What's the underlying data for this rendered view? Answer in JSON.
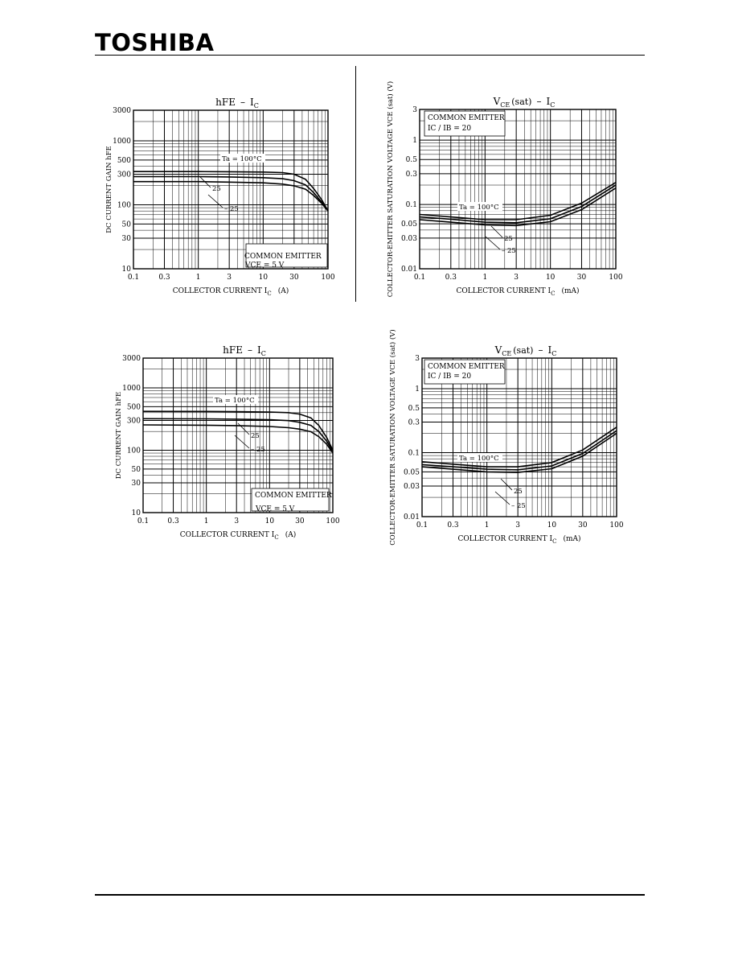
{
  "header": {
    "brand": "TOSHIBA"
  },
  "chart_data": [
    {
      "type": "line",
      "title_main": "hFE",
      "title_sep": "–",
      "title_rhs": "I",
      "title_rhs_sub": "C",
      "ylabel": "DC CURRENT GAIN   hFE",
      "xlabel_main": "COLLECTOR CURRENT   I",
      "xlabel_sub": "C",
      "xlabel_unit": "(A)",
      "x_scale": "log",
      "y_scale": "log",
      "xlim": [
        0.1,
        100
      ],
      "ylim": [
        10,
        3000
      ],
      "x_ticks": [
        "0.1",
        "0.3",
        "1",
        "3",
        "10",
        "30",
        "100"
      ],
      "y_ticks": [
        "3000",
        "1000",
        "500",
        "300",
        "100",
        "50",
        "30",
        "10"
      ],
      "annotation_lines": [
        "COMMON EMITTER",
        "VCE = 5 V"
      ],
      "curve_labels": [
        "Ta = 100°C",
        "25",
        "– 25"
      ],
      "series": [
        {
          "name": "Ta = 100°C",
          "x": [
            0.1,
            1,
            3,
            10,
            20,
            30,
            45,
            60,
            80,
            100
          ],
          "y": [
            330,
            330,
            328,
            325,
            318,
            300,
            250,
            180,
            120,
            80
          ]
        },
        {
          "name": "25",
          "x": [
            0.1,
            1,
            3,
            10,
            20,
            30,
            45,
            60,
            80,
            100
          ],
          "y": [
            275,
            275,
            272,
            265,
            255,
            238,
            205,
            155,
            110,
            80
          ]
        },
        {
          "name": "– 25",
          "x": [
            0.1,
            1,
            3,
            10,
            20,
            30,
            45,
            60,
            80,
            100
          ],
          "y": [
            230,
            230,
            226,
            220,
            210,
            198,
            175,
            140,
            105,
            80
          ]
        }
      ]
    },
    {
      "type": "line",
      "title_main": "V",
      "title_main_sub": "CE",
      "title_paren": "(sat)",
      "title_sep": "–",
      "title_rhs": "I",
      "title_rhs_sub": "C",
      "ylabel": "COLLECTOR-EMITTER SATURATION VOLTAGE   VCE (sat)  (V)",
      "xlabel_main": "COLLECTOR CURRENT   I",
      "xlabel_sub": "C",
      "xlabel_unit": "(mA)",
      "x_scale": "log",
      "y_scale": "log",
      "xlim": [
        0.1,
        100
      ],
      "ylim": [
        0.01,
        3
      ],
      "x_ticks": [
        "0.1",
        "0.3",
        "1",
        "3",
        "10",
        "30",
        "100"
      ],
      "y_ticks": [
        "3",
        "1",
        "0.5",
        "0.3",
        "0.1",
        "0.05",
        "0.03",
        "0.01"
      ],
      "annotation_lines": [
        "COMMON EMITTER",
        "IC / IB = 20"
      ],
      "curve_labels": [
        "Ta = 100°C",
        "25",
        "– 25"
      ],
      "series": [
        {
          "name": "Ta = 100°C",
          "x": [
            0.1,
            0.3,
            1,
            3,
            10,
            30,
            100
          ],
          "y": [
            0.07,
            0.064,
            0.058,
            0.058,
            0.068,
            0.105,
            0.22
          ]
        },
        {
          "name": "25",
          "x": [
            0.1,
            0.3,
            1,
            3,
            10,
            30,
            100
          ],
          "y": [
            0.064,
            0.059,
            0.053,
            0.052,
            0.06,
            0.093,
            0.2
          ]
        },
        {
          "name": "– 25",
          "x": [
            0.1,
            0.3,
            1,
            3,
            10,
            30,
            100
          ],
          "y": [
            0.058,
            0.053,
            0.048,
            0.047,
            0.054,
            0.083,
            0.18
          ]
        }
      ]
    },
    {
      "type": "line",
      "title_main": "hFE",
      "title_sep": "–",
      "title_rhs": "I",
      "title_rhs_sub": "C",
      "ylabel": "DC CURRENT GAIN   hFE",
      "xlabel_main": "COLLECTOR CURRENT   I",
      "xlabel_sub": "C",
      "xlabel_unit": "(A)",
      "x_scale": "log",
      "y_scale": "log",
      "xlim": [
        0.1,
        100
      ],
      "ylim": [
        10,
        3000
      ],
      "x_ticks": [
        "0.1",
        "0.3",
        "1",
        "3",
        "10",
        "30",
        "100"
      ],
      "y_ticks": [
        "3000",
        "1000",
        "500",
        "300",
        "100",
        "50",
        "30",
        "10"
      ],
      "annotation_lines": [
        "COMMON EMITTER",
        "VCE = 5 V"
      ],
      "curve_labels": [
        "Ta = 100°C",
        "25",
        "– 25"
      ],
      "series": [
        {
          "name": "Ta = 100°C",
          "x": [
            0.1,
            1,
            3,
            10,
            20,
            30,
            45,
            60,
            80,
            100
          ],
          "y": [
            420,
            418,
            415,
            410,
            400,
            380,
            330,
            250,
            160,
            100
          ]
        },
        {
          "name": "25",
          "x": [
            0.1,
            1,
            3,
            10,
            20,
            30,
            45,
            60,
            80,
            100
          ],
          "y": [
            320,
            318,
            315,
            308,
            298,
            280,
            250,
            200,
            140,
            95
          ]
        },
        {
          "name": "– 25",
          "x": [
            0.1,
            1,
            3,
            10,
            20,
            30,
            45,
            60,
            80,
            100
          ],
          "y": [
            255,
            252,
            248,
            240,
            230,
            218,
            198,
            165,
            125,
            90
          ]
        }
      ]
    },
    {
      "type": "line",
      "title_main": "V",
      "title_main_sub": "CE",
      "title_paren": "(sat)",
      "title_sep": "–",
      "title_rhs": "I",
      "title_rhs_sub": "C",
      "ylabel": "COLLECTOR-EMITTER SATURATION VOLTAGE   VCE (sat)  (V)",
      "xlabel_main": "COLLECTOR CURRENT   I",
      "xlabel_sub": "C",
      "xlabel_unit": "(mA)",
      "x_scale": "log",
      "y_scale": "log",
      "xlim": [
        0.1,
        100
      ],
      "ylim": [
        0.01,
        3
      ],
      "x_ticks": [
        "0.1",
        "0.3",
        "1",
        "3",
        "10",
        "30",
        "100"
      ],
      "y_ticks": [
        "3",
        "1",
        "0.5",
        "0.3",
        "0.1",
        "0.05",
        "0.03",
        "0.01"
      ],
      "annotation_lines": [
        "COMMON EMITTER",
        "IC / IB = 20"
      ],
      "curve_labels": [
        "Ta = 100°C",
        "25",
        "– 25"
      ],
      "series": [
        {
          "name": "Ta = 100°C",
          "x": [
            0.1,
            0.3,
            1,
            3,
            10,
            30,
            100
          ],
          "y": [
            0.072,
            0.066,
            0.06,
            0.06,
            0.07,
            0.11,
            0.25
          ]
        },
        {
          "name": "25",
          "x": [
            0.1,
            0.3,
            1,
            3,
            10,
            30,
            100
          ],
          "y": [
            0.065,
            0.06,
            0.055,
            0.054,
            0.062,
            0.097,
            0.22
          ]
        },
        {
          "name": "– 25",
          "x": [
            0.1,
            0.3,
            1,
            3,
            10,
            30,
            100
          ],
          "y": [
            0.06,
            0.055,
            0.05,
            0.049,
            0.056,
            0.088,
            0.2
          ]
        }
      ]
    }
  ]
}
